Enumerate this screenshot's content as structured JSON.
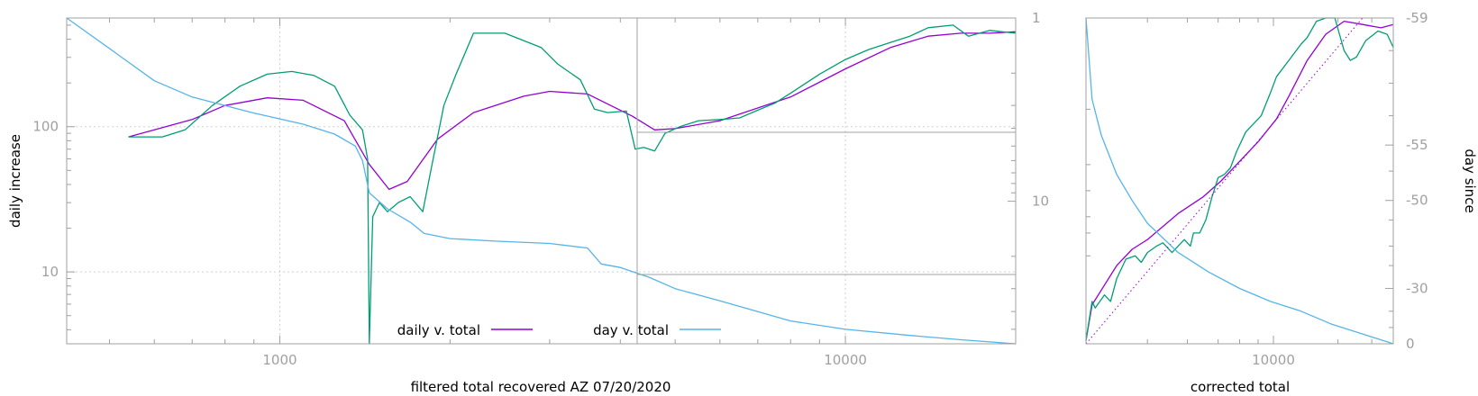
{
  "colors": {
    "daily_fit": "#9400d3",
    "daily_raw": "#009e73",
    "day": "#56b4e9",
    "frame": "#a0a0a0",
    "grid": "#d0d0d0"
  },
  "chart_data": [
    {
      "type": "line",
      "xlabel": "filtered total recovered AZ 07/20/2020",
      "ylabel": "daily increase",
      "x_scale": "log",
      "xlim": [
        420,
        20000
      ],
      "x_ticks": [
        "1000",
        "10000"
      ],
      "y_scale": "log",
      "ylim": [
        3.2,
        560
      ],
      "y_ticks": [
        "100",
        "10"
      ],
      "y2_scale": "log",
      "y2_reversed": true,
      "y2lim": [
        1,
        60
      ],
      "y2_ticks": [
        "1",
        "10"
      ],
      "grid": true,
      "legend_position": "bottom-center",
      "legend": [
        "daily v. total",
        "day v. total"
      ],
      "series": [
        {
          "name": "daily v. total",
          "axis": "y",
          "points": [
            [
              540,
              85
            ],
            [
              700,
              112
            ],
            [
              800,
              140
            ],
            [
              950,
              158
            ],
            [
              1100,
              152
            ],
            [
              1300,
              110
            ],
            [
              1440,
              55
            ],
            [
              1560,
              37
            ],
            [
              1680,
              42
            ],
            [
              1900,
              82
            ],
            [
              2200,
              125
            ],
            [
              2700,
              162
            ],
            [
              3000,
              175
            ],
            [
              3500,
              168
            ],
            [
              4200,
              118
            ],
            [
              4600,
              95
            ],
            [
              5000,
              97
            ],
            [
              6000,
              110
            ],
            [
              8000,
              160
            ],
            [
              10000,
              250
            ],
            [
              12000,
              350
            ],
            [
              14000,
              420
            ],
            [
              16000,
              440
            ],
            [
              18000,
              440
            ],
            [
              20000,
              450
            ]
          ]
        },
        {
          "axis": "y",
          "points": [
            [
              540,
              85
            ],
            [
              620,
              85
            ],
            [
              680,
              95
            ],
            [
              760,
              140
            ],
            [
              850,
              190
            ],
            [
              950,
              230
            ],
            [
              1050,
              240
            ],
            [
              1150,
              225
            ],
            [
              1250,
              190
            ],
            [
              1330,
              120
            ],
            [
              1400,
              95
            ],
            [
              1430,
              60
            ],
            [
              1440,
              1.5
            ],
            [
              1460,
              24
            ],
            [
              1500,
              30
            ],
            [
              1550,
              26
            ],
            [
              1620,
              30
            ],
            [
              1700,
              33
            ],
            [
              1790,
              26
            ],
            [
              1850,
              50
            ],
            [
              1950,
              140
            ],
            [
              2050,
              230
            ],
            [
              2200,
              440
            ],
            [
              2500,
              440
            ],
            [
              2900,
              350
            ],
            [
              3100,
              270
            ],
            [
              3400,
              210
            ],
            [
              3600,
              132
            ],
            [
              3800,
              125
            ],
            [
              4100,
              128
            ],
            [
              4250,
              70
            ],
            [
              4400,
              72
            ],
            [
              4600,
              68
            ],
            [
              4800,
              90
            ],
            [
              5100,
              100
            ],
            [
              5500,
              110
            ],
            [
              6000,
              112
            ],
            [
              6500,
              115
            ],
            [
              7000,
              130
            ],
            [
              7500,
              145
            ],
            [
              8000,
              170
            ],
            [
              9000,
              230
            ],
            [
              10000,
              290
            ],
            [
              11000,
              340
            ],
            [
              12000,
              380
            ],
            [
              13000,
              420
            ],
            [
              14000,
              480
            ],
            [
              15500,
              500
            ],
            [
              16500,
              420
            ],
            [
              18000,
              460
            ],
            [
              20000,
              440
            ]
          ]
        },
        {
          "name": "day v. total",
          "axis": "y2",
          "points": [
            [
              420,
              1
            ],
            [
              520,
              1.6
            ],
            [
              600,
              2.2
            ],
            [
              700,
              2.7
            ],
            [
              900,
              3.3
            ],
            [
              1100,
              3.8
            ],
            [
              1250,
              4.3
            ],
            [
              1360,
              5.0
            ],
            [
              1400,
              6.0
            ],
            [
              1440,
              9
            ],
            [
              1550,
              11
            ],
            [
              1700,
              13
            ],
            [
              1800,
              15
            ],
            [
              2000,
              16
            ],
            [
              2400,
              16.5
            ],
            [
              3000,
              17
            ],
            [
              3500,
              18
            ],
            [
              3700,
              22
            ],
            [
              4000,
              23
            ],
            [
              4500,
              26
            ],
            [
              5000,
              30
            ],
            [
              6000,
              35
            ],
            [
              7000,
              40
            ],
            [
              8000,
              45
            ],
            [
              10000,
              50
            ],
            [
              13000,
              54
            ],
            [
              16000,
              57
            ],
            [
              20000,
              60
            ]
          ]
        }
      ]
    },
    {
      "type": "line",
      "xlabel": "corrected total",
      "ylabel": "day since",
      "x_scale": "log",
      "x_ticks": [
        "10000"
      ],
      "y2_ticks": [
        "-59",
        "-55",
        "-50",
        "-30",
        "0"
      ],
      "series": [
        {
          "axis": "y",
          "points": [
            [
              0.0,
              0.99
            ],
            [
              0.02,
              0.88
            ],
            [
              0.06,
              0.82
            ],
            [
              0.1,
              0.76
            ],
            [
              0.15,
              0.71
            ],
            [
              0.2,
              0.68
            ],
            [
              0.25,
              0.64
            ],
            [
              0.3,
              0.6
            ],
            [
              0.38,
              0.55
            ],
            [
              0.44,
              0.5
            ],
            [
              0.5,
              0.44
            ],
            [
              0.56,
              0.38
            ],
            [
              0.62,
              0.31
            ],
            [
              0.66,
              0.24
            ],
            [
              0.72,
              0.13
            ],
            [
              0.78,
              0.05
            ],
            [
              0.84,
              0.01
            ],
            [
              0.9,
              0.02
            ],
            [
              0.96,
              0.03
            ],
            [
              1.0,
              0.02
            ]
          ]
        },
        {
          "axis": "y",
          "points": [
            [
              0.0,
              0.99
            ],
            [
              0.02,
              0.87
            ],
            [
              0.03,
              0.89
            ],
            [
              0.06,
              0.85
            ],
            [
              0.08,
              0.87
            ],
            [
              0.1,
              0.8
            ],
            [
              0.13,
              0.74
            ],
            [
              0.16,
              0.73
            ],
            [
              0.18,
              0.75
            ],
            [
              0.2,
              0.72
            ],
            [
              0.23,
              0.7
            ],
            [
              0.25,
              0.69
            ],
            [
              0.28,
              0.72
            ],
            [
              0.3,
              0.7
            ],
            [
              0.32,
              0.68
            ],
            [
              0.34,
              0.7
            ],
            [
              0.35,
              0.66
            ],
            [
              0.37,
              0.66
            ],
            [
              0.39,
              0.62
            ],
            [
              0.41,
              0.55
            ],
            [
              0.43,
              0.49
            ],
            [
              0.45,
              0.48
            ],
            [
              0.47,
              0.46
            ],
            [
              0.49,
              0.41
            ],
            [
              0.52,
              0.35
            ],
            [
              0.55,
              0.32
            ],
            [
              0.57,
              0.3
            ],
            [
              0.6,
              0.23
            ],
            [
              0.62,
              0.18
            ],
            [
              0.66,
              0.13
            ],
            [
              0.7,
              0.08
            ],
            [
              0.72,
              0.06
            ],
            [
              0.75,
              0.01
            ],
            [
              0.78,
              0.0
            ],
            [
              0.81,
              0.0
            ],
            [
              0.84,
              0.1
            ],
            [
              0.86,
              0.13
            ],
            [
              0.88,
              0.12
            ],
            [
              0.91,
              0.07
            ],
            [
              0.95,
              0.04
            ],
            [
              0.98,
              0.05
            ],
            [
              1.0,
              0.09
            ]
          ]
        },
        {
          "axis": "y",
          "style": "dotted",
          "points": [
            [
              0.0,
              1.0
            ],
            [
              0.9,
              0.0
            ]
          ]
        },
        {
          "axis": "y2",
          "points": [
            [
              0.0,
              0.0
            ],
            [
              0.02,
              0.25
            ],
            [
              0.05,
              0.36
            ],
            [
              0.1,
              0.48
            ],
            [
              0.15,
              0.56
            ],
            [
              0.2,
              0.63
            ],
            [
              0.3,
              0.72
            ],
            [
              0.4,
              0.78
            ],
            [
              0.5,
              0.83
            ],
            [
              0.6,
              0.87
            ],
            [
              0.7,
              0.9
            ],
            [
              0.8,
              0.94
            ],
            [
              0.9,
              0.97
            ],
            [
              1.0,
              1.0
            ]
          ]
        }
      ]
    }
  ]
}
